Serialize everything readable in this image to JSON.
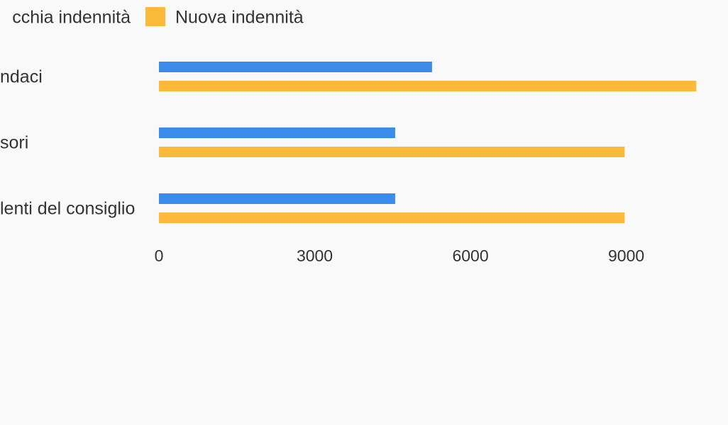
{
  "chart_data": {
    "type": "bar",
    "orientation": "horizontal",
    "categories": [
      "ndaci",
      "sori",
      "lenti del consiglio"
    ],
    "series": [
      {
        "name": "cchia indennità",
        "color": "#3b8beb",
        "values": [
          5260,
          4550,
          4550
        ]
      },
      {
        "name": "Nuova indennità",
        "color": "#fbba3a",
        "values": [
          10350,
          8970,
          8970
        ]
      }
    ],
    "xlim": [
      0,
      10960
    ],
    "xticks": [
      0,
      3000,
      6000,
      9000
    ]
  }
}
